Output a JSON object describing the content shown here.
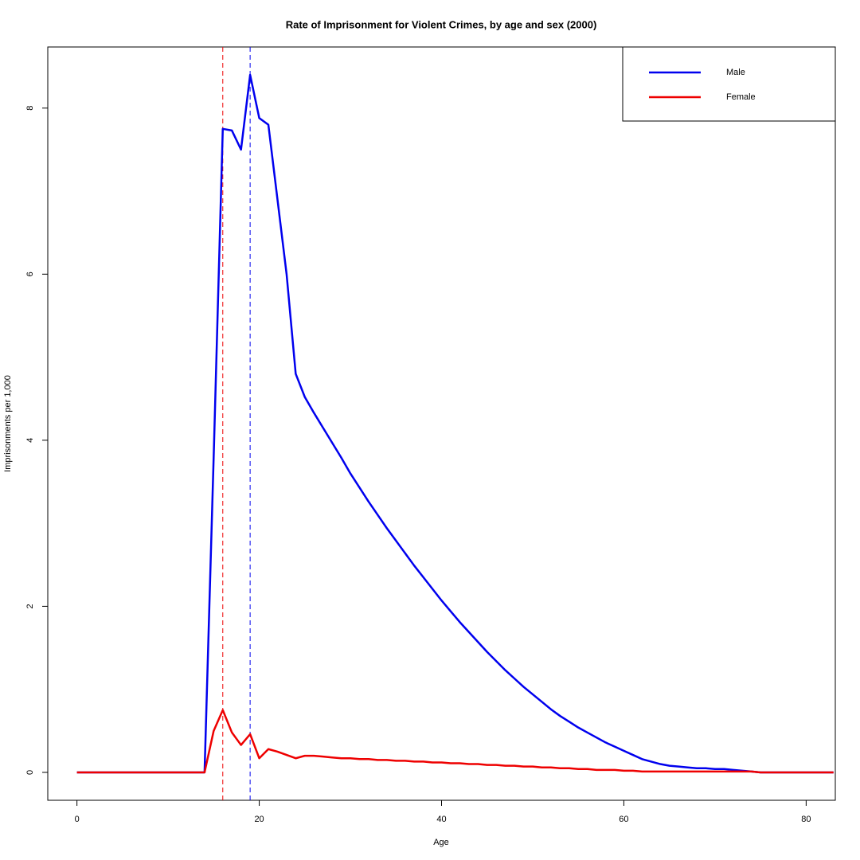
{
  "chart_data": {
    "type": "line",
    "title": "Rate of Imprisonment for Violent Crimes, by age and sex (2000)",
    "x_label": "Age",
    "y_label": "Imprisonments per 1,000",
    "x": [
      0,
      1,
      2,
      3,
      4,
      5,
      6,
      7,
      8,
      9,
      10,
      11,
      12,
      13,
      14,
      15,
      16,
      17,
      18,
      19,
      20,
      21,
      22,
      23,
      24,
      25,
      26,
      27,
      28,
      29,
      30,
      31,
      32,
      33,
      34,
      35,
      36,
      37,
      38,
      39,
      40,
      41,
      42,
      43,
      44,
      45,
      46,
      47,
      48,
      49,
      50,
      51,
      52,
      53,
      54,
      55,
      56,
      57,
      58,
      59,
      60,
      61,
      62,
      63,
      64,
      65,
      66,
      67,
      68,
      69,
      70,
      71,
      72,
      73,
      74,
      75,
      76,
      77,
      78,
      79,
      80,
      81,
      82,
      83
    ],
    "series": [
      {
        "name": "Male",
        "color": "#0000ee",
        "values": [
          0,
          0,
          0,
          0,
          0,
          0,
          0,
          0,
          0,
          0,
          0,
          0,
          0,
          0,
          0,
          3.8,
          7.75,
          7.73,
          7.5,
          8.4,
          7.88,
          7.8,
          6.9,
          6.0,
          4.8,
          4.52,
          4.33,
          4.15,
          3.97,
          3.79,
          3.6,
          3.43,
          3.26,
          3.1,
          2.94,
          2.79,
          2.64,
          2.49,
          2.35,
          2.21,
          2.07,
          1.94,
          1.81,
          1.69,
          1.57,
          1.45,
          1.34,
          1.23,
          1.13,
          1.03,
          0.94,
          0.85,
          0.76,
          0.68,
          0.61,
          0.54,
          0.48,
          0.42,
          0.36,
          0.31,
          0.26,
          0.21,
          0.16,
          0.13,
          0.1,
          0.08,
          0.07,
          0.06,
          0.05,
          0.05,
          0.04,
          0.04,
          0.03,
          0.02,
          0.01,
          0,
          0,
          0,
          0,
          0,
          0,
          0,
          0,
          0
        ]
      },
      {
        "name": "Female",
        "color": "#ee0000",
        "values": [
          0,
          0,
          0,
          0,
          0,
          0,
          0,
          0,
          0,
          0,
          0,
          0,
          0,
          0,
          0,
          0.5,
          0.75,
          0.48,
          0.33,
          0.46,
          0.17,
          0.28,
          0.25,
          0.21,
          0.17,
          0.2,
          0.2,
          0.19,
          0.18,
          0.17,
          0.17,
          0.16,
          0.16,
          0.15,
          0.15,
          0.14,
          0.14,
          0.13,
          0.13,
          0.12,
          0.12,
          0.11,
          0.11,
          0.1,
          0.1,
          0.09,
          0.09,
          0.08,
          0.08,
          0.07,
          0.07,
          0.06,
          0.06,
          0.05,
          0.05,
          0.04,
          0.04,
          0.03,
          0.03,
          0.03,
          0.02,
          0.02,
          0.01,
          0.01,
          0.01,
          0.01,
          0.01,
          0.01,
          0.01,
          0.01,
          0.01,
          0.01,
          0.01,
          0.01,
          0.01,
          0,
          0,
          0,
          0,
          0,
          0,
          0,
          0,
          0
        ]
      }
    ],
    "vlines": [
      {
        "x": 16,
        "color": "#ee0000"
      },
      {
        "x": 19,
        "color": "#0000ee"
      }
    ],
    "xlim": [
      -3.2,
      83.2
    ],
    "xticks": [
      0,
      20,
      40,
      60,
      80
    ],
    "ylim": [
      -0.336,
      8.736
    ],
    "yticks": [
      0,
      2,
      4,
      6,
      8
    ],
    "legend": "topright"
  }
}
